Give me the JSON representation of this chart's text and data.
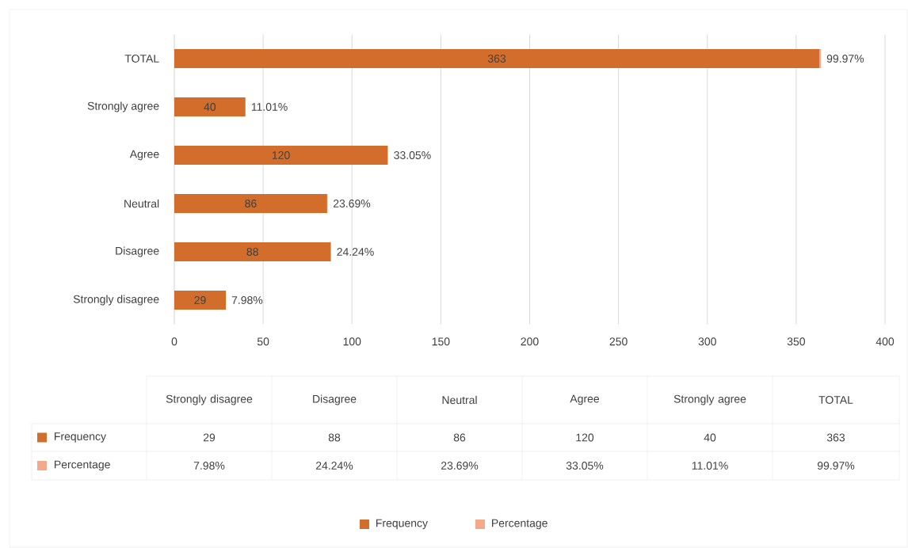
{
  "chart_data": {
    "type": "bar",
    "orientation": "horizontal",
    "stacked": true,
    "grid": "x",
    "legend": "bottom",
    "categories": [
      "TOTAL",
      "Strongly agree",
      "Agree",
      "Neutral",
      "Disagree",
      "Strongly disagree"
    ],
    "xlim": [
      0,
      400
    ],
    "xticks": [
      0,
      50,
      100,
      150,
      200,
      250,
      300,
      350,
      400
    ],
    "series": [
      {
        "name": "Frequency",
        "color": "#d26d2b",
        "values": [
          363,
          40,
          120,
          86,
          88,
          29
        ],
        "value_labels": [
          "363",
          "40",
          "120",
          "86",
          "88",
          "29"
        ]
      },
      {
        "name": "Percentage",
        "color": "#f4a98a",
        "values": [
          0.9997,
          0.1101,
          0.3305,
          0.2369,
          0.2424,
          0.0798
        ],
        "value_labels": [
          "99.97%",
          "11.01%",
          "33.05%",
          "23.69%",
          "24.24%",
          "7.98%"
        ]
      }
    ]
  }
}
